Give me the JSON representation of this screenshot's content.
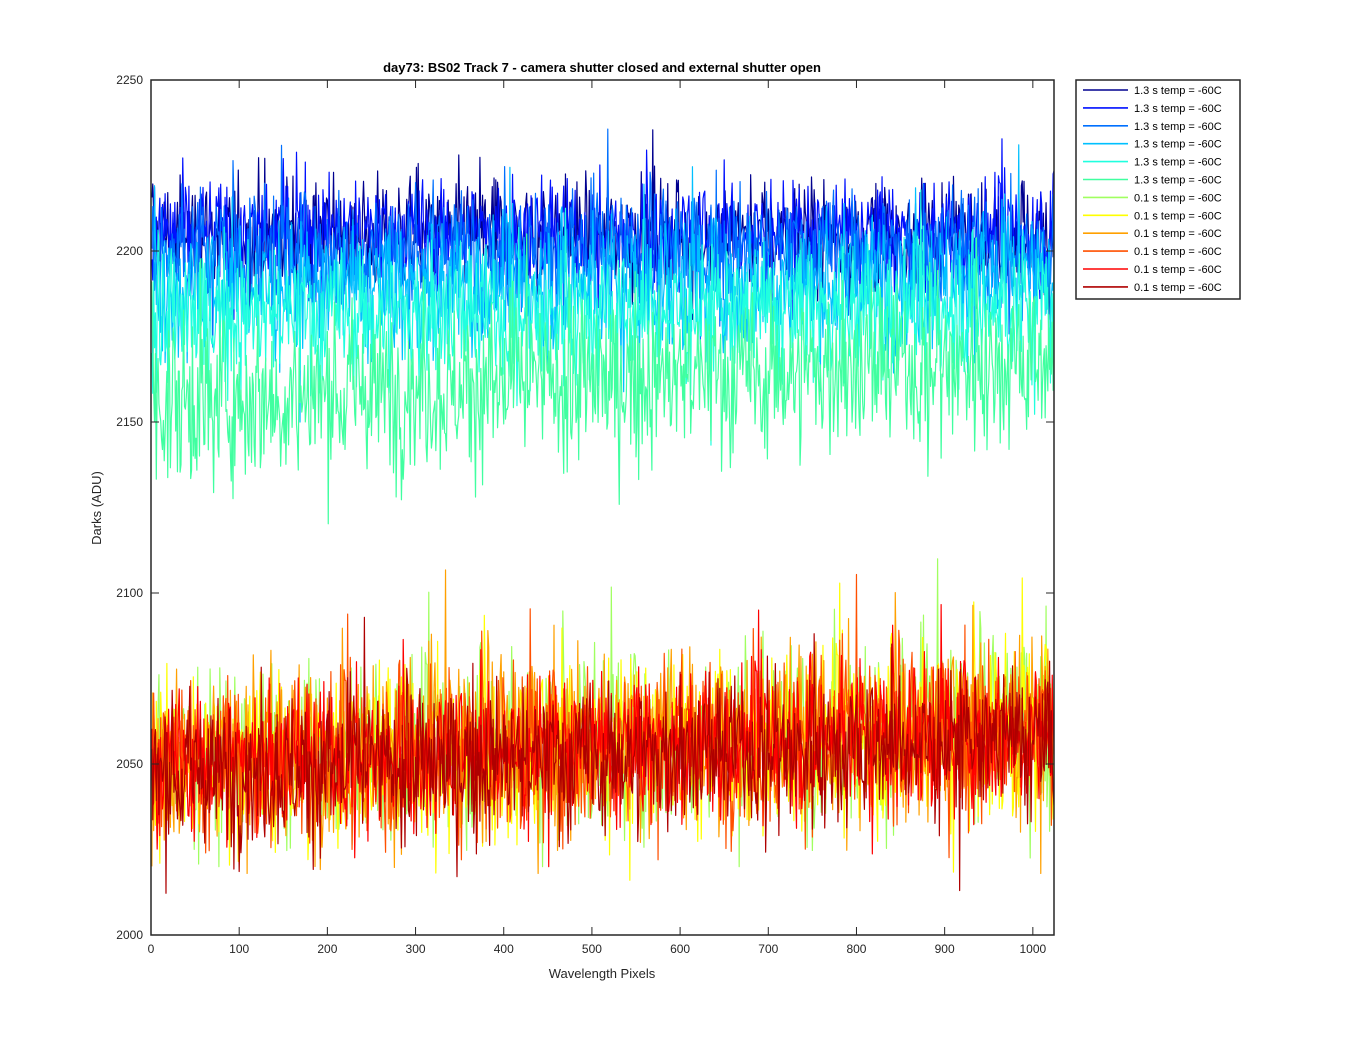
{
  "chart_data": {
    "type": "line",
    "title": "day73: BS02  Track 7 - camera shutter closed and external shutter open",
    "xlabel": "Wavelength Pixels",
    "ylabel": "Darks (ADU)",
    "xlim": [
      0,
      1024
    ],
    "ylim": [
      2000,
      2250
    ],
    "xticks": [
      "0",
      "100",
      "200",
      "300",
      "400",
      "500",
      "600",
      "700",
      "800",
      "900",
      "1000"
    ],
    "yticks": [
      "2000",
      "2050",
      "2100",
      "2150",
      "2200",
      "2250"
    ],
    "grid": false,
    "legend_position": "outside-top-right",
    "x_range": [
      1,
      1024
    ],
    "series": [
      {
        "name": "1.3 s temp = -60C",
        "color": "#00008f",
        "mean": 2205,
        "spread": 8,
        "min": 2180,
        "max": 2241,
        "slope": 0
      },
      {
        "name": "1.3 s temp = -60C",
        "color": "#0010ff",
        "mean": 2205,
        "spread": 8,
        "min": 2180,
        "max": 2245,
        "slope": 0
      },
      {
        "name": "1.3 s temp = -60C",
        "color": "#0070ff",
        "mean": 2200,
        "spread": 9,
        "min": 2165,
        "max": 2236,
        "slope": 0
      },
      {
        "name": "1.3 s temp = -60C",
        "color": "#00c0ff",
        "mean": 2190,
        "spread": 10,
        "min": 2150,
        "max": 2234,
        "slope": 0.003
      },
      {
        "name": "1.3 s temp = -60C",
        "color": "#20ffdf",
        "mean": 2182,
        "spread": 10,
        "min": 2143,
        "max": 2220,
        "slope": 0.003
      },
      {
        "name": "1.3 s temp = -60C",
        "color": "#40ffa0",
        "mean": 2162,
        "spread": 12,
        "min": 2114,
        "max": 2205,
        "slope": 0.012
      },
      {
        "name": "0.1 s temp = -60C",
        "color": "#a0ff60",
        "mean": 2057,
        "spread": 13,
        "min": 2020,
        "max": 2110,
        "slope": 0.01
      },
      {
        "name": "0.1 s temp = -60C",
        "color": "#ffff00",
        "mean": 2055,
        "spread": 13,
        "min": 2016,
        "max": 2110,
        "slope": 0.01
      },
      {
        "name": "0.1 s temp = -60C",
        "color": "#ffa000",
        "mean": 2057,
        "spread": 13,
        "min": 2018,
        "max": 2132,
        "slope": 0.01
      },
      {
        "name": "0.1 s temp = -60C",
        "color": "#ff5000",
        "mean": 2055,
        "spread": 12,
        "min": 2022,
        "max": 2110,
        "slope": 0.01
      },
      {
        "name": "0.1 s temp = -60C",
        "color": "#ff0000",
        "mean": 2055,
        "spread": 11,
        "min": 2020,
        "max": 2118,
        "slope": 0.01
      },
      {
        "name": "0.1 s temp = -60C",
        "color": "#af0000",
        "mean": 2052,
        "spread": 11,
        "min": 2006,
        "max": 2108,
        "slope": 0.01
      }
    ]
  }
}
